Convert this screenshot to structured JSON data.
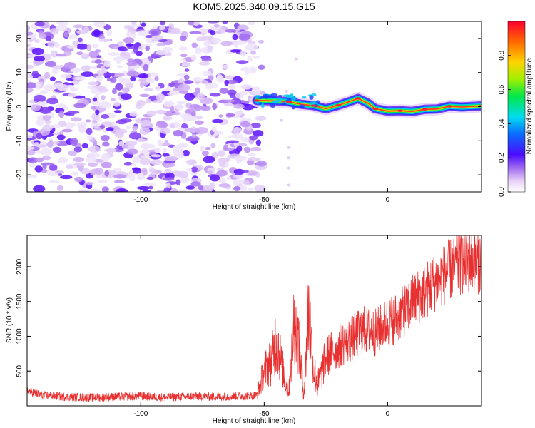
{
  "chart_data": [
    {
      "type": "heatmap",
      "title": "KOM5.2025.340.09.15.G15",
      "xlabel": "Height of straight line (km)",
      "ylabel": "Frequency (Hz)",
      "xlim": [
        -146,
        38
      ],
      "ylim": [
        -25,
        25
      ],
      "xticks": [
        -100,
        -50,
        0
      ],
      "yticks": [
        -20,
        -10,
        0,
        10,
        20
      ],
      "noise_region_x": [
        -146,
        -53
      ],
      "signal_ridge": {
        "x": [
          -53,
          -45,
          -40,
          -35,
          -30,
          -25,
          -20,
          -15,
          -12,
          -8,
          -5,
          0,
          5,
          10,
          15,
          20,
          25,
          30,
          38
        ],
        "y": [
          1.8,
          1.7,
          1.4,
          0.7,
          0.3,
          -0.6,
          0.4,
          1.6,
          2.4,
          1.0,
          -0.6,
          -1.3,
          -1.2,
          -1.4,
          -0.8,
          -0.7,
          0.1,
          -0.1,
          0.2
        ]
      },
      "colorbar": {
        "label": "Normalized spectral amplitude",
        "range": [
          0,
          1
        ],
        "ticks": [
          "0.0",
          "0.2",
          "0.4",
          "0.6",
          "0.8"
        ]
      }
    },
    {
      "type": "line",
      "title": "",
      "xlabel": "Height of straight line (km)",
      "ylabel": "SNR (10 * v/v)",
      "xlim": [
        -146,
        38
      ],
      "ylim": [
        0,
        2450
      ],
      "xticks": [
        -100,
        -50,
        0
      ],
      "yticks": [
        500,
        1000,
        1500,
        2000
      ],
      "series": [
        {
          "name": "SNR",
          "color": "#e83030",
          "x": [
            -146,
            -140,
            -130,
            -120,
            -110,
            -100,
            -90,
            -80,
            -70,
            -60,
            -53,
            -50,
            -47,
            -45,
            -43,
            -41,
            -40,
            -38,
            -36,
            -34,
            -32,
            -30,
            -28,
            -25,
            -20,
            -15,
            -10,
            -5,
            0,
            5,
            10,
            15,
            20,
            25,
            30,
            35,
            38
          ],
          "y": [
            220,
            150,
            130,
            120,
            130,
            140,
            120,
            140,
            130,
            140,
            150,
            500,
            650,
            1000,
            600,
            300,
            200,
            1200,
            900,
            150,
            1400,
            500,
            300,
            700,
            850,
            950,
            1100,
            1050,
            1200,
            1300,
            1500,
            1650,
            1800,
            1950,
            2050,
            2100,
            2050
          ]
        }
      ]
    }
  ]
}
